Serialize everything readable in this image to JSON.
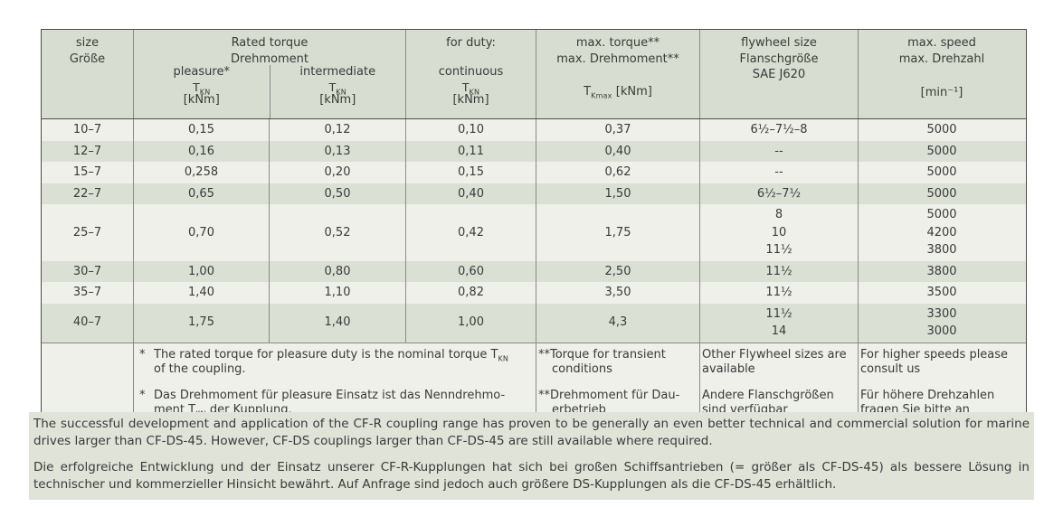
{
  "colors": {
    "header_bg": "#d8ddd1",
    "row_light": "#eef0e9",
    "row_dark": "#dbe0d5",
    "notes_bg": "#dfe3d8",
    "border_outer": "#4c4c4c",
    "border_inner": "#8a8a8a",
    "text": "#3a3a3a"
  },
  "table": {
    "header": {
      "size": {
        "en": "size",
        "de": "Größe"
      },
      "rated_torque": {
        "en": "Rated torque",
        "de": "Drehmoment"
      },
      "pleasure": {
        "label": "pleasure*",
        "symbol": [
          [
            "t",
            "T"
          ],
          [
            "sub",
            "KN"
          ]
        ],
        "unit": "[kNm]"
      },
      "intermediate": {
        "label": "intermediate",
        "symbol": [
          [
            "t",
            "T"
          ],
          [
            "sub",
            "KN"
          ]
        ],
        "unit": "[kNm]"
      },
      "continuous": {
        "duty": "for duty:",
        "label": "continuous",
        "symbol": [
          [
            "t",
            "T"
          ],
          [
            "sub",
            "KN"
          ]
        ],
        "unit": "[kNm]"
      },
      "max_torque": {
        "en": "max. torque**",
        "de": "max. Drehmoment**",
        "symbol": [
          [
            "t",
            "T"
          ],
          [
            "sub",
            "Kmax"
          ],
          [
            "t",
            " [kNm]"
          ]
        ]
      },
      "flywheel": {
        "en": "flywheel size",
        "de": "Flanschgröße",
        "standard": "SAE J620"
      },
      "max_speed": {
        "en": "max. speed",
        "de": "max. Drehzahl",
        "unit": "[min⁻¹]"
      }
    },
    "rows": [
      {
        "size": "10–7",
        "pleasure": "0,15",
        "intermediate": "0,12",
        "continuous": "0,10",
        "max_torque": "0,37",
        "flywheel": "6½–7½–8",
        "speed": "5000"
      },
      {
        "size": "12–7",
        "pleasure": "0,16",
        "intermediate": "0,13",
        "continuous": "0,11",
        "max_torque": "0,40",
        "flywheel": "--",
        "speed": "5000"
      },
      {
        "size": "15–7",
        "pleasure": "0,258",
        "intermediate": "0,20",
        "continuous": "0,15",
        "max_torque": "0,62",
        "flywheel": "--",
        "speed": "5000"
      },
      {
        "size": "22–7",
        "pleasure": "0,65",
        "intermediate": "0,50",
        "continuous": "0,40",
        "max_torque": "1,50",
        "flywheel": "6½–7½",
        "speed": "5000"
      },
      {
        "size": "25–7",
        "pleasure": "0,70",
        "intermediate": "0,52",
        "continuous": "0,42",
        "max_torque": "1,75",
        "flywheel": "8\n10\n11½",
        "speed": "5000\n4200\n3800"
      },
      {
        "size": "30–7",
        "pleasure": "1,00",
        "intermediate": "0,80",
        "continuous": "0,60",
        "max_torque": "2,50",
        "flywheel": "11½",
        "speed": "3800"
      },
      {
        "size": "35–7",
        "pleasure": "1,40",
        "intermediate": "1,10",
        "continuous": "0,82",
        "max_torque": "3,50",
        "flywheel": "11½",
        "speed": "3500"
      },
      {
        "size": "40–7",
        "pleasure": "1,75",
        "intermediate": "1,40",
        "continuous": "1,00",
        "max_torque": "4,3",
        "flywheel": "11½\n14",
        "speed": "3300\n3000"
      }
    ],
    "footnotes": {
      "rated": [
        {
          "marker": "*",
          "rich": [
            [
              "t",
              "The rated torque for pleasure duty is the nominal torque T"
            ],
            [
              "sub",
              "KN"
            ],
            [
              "t",
              "\nof the coupling."
            ]
          ]
        },
        {
          "marker": "*",
          "rich": [
            [
              "t",
              "Das Drehmoment für pleasure Einsatz ist das Nenndrehmo-\nment T"
            ],
            [
              "sub",
              "KN"
            ],
            [
              "t",
              " der Kupplung."
            ]
          ]
        }
      ],
      "max_torque": [
        "**Torque for transient\nconditions",
        "**Drehmoment für Dau-\nerbetrieb"
      ],
      "flywheel": [
        "Other Flywheel sizes are\navailable",
        "Andere Flanschgrößen\nsind verfügbar"
      ],
      "speed": [
        "For higher speeds please\nconsult us",
        "Für höhere Drehzahlen\nfragen Sie bitte an"
      ]
    }
  },
  "notes": {
    "en": "The successful development and application of the CF-R coupling range has proven to be generally an even better technical and commercial solution for marine drives larger than CF-DS-45. However, CF-DS couplings larger than CF-DS-45 are still available where required.",
    "de": "Die erfolgreiche Entwicklung und der Einsatz unserer CF-R-Kupplungen hat sich bei großen Schiffsantrieben (= größer als CF-DS-45) als bessere Lösung in technischer und kommerzieller Hinsicht bewährt. Auf Anfrage sind jedoch auch größere DS-Kupplungen als die CF-DS-45 erhältlich."
  }
}
